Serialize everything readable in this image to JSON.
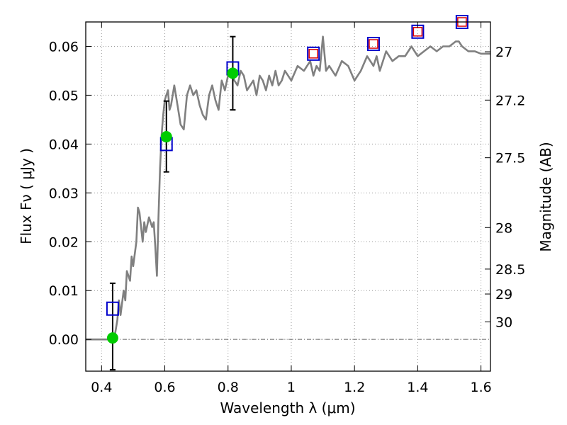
{
  "chart_data": {
    "type": "line",
    "xlabel": "Wavelength  λ (μm)",
    "ylabel_left": "Flux  Fν  ( μJy )",
    "ylabel_right": "Magnitude (AB)",
    "xlim": [
      0.35,
      1.63
    ],
    "ylim": [
      -0.0065,
      0.065
    ],
    "grid": true,
    "x_ticks": [
      0.4,
      0.6,
      0.8,
      1.0,
      1.2,
      1.4,
      1.6
    ],
    "x_tick_labels": [
      "0.4",
      "0.6",
      "0.8",
      "1",
      "1.2",
      "1.4",
      "1.6"
    ],
    "y_ticks": [
      0.0,
      0.01,
      0.02,
      0.03,
      0.04,
      0.05,
      0.06
    ],
    "y_tick_labels": [
      "0.00",
      "0.01",
      "0.02",
      "0.03",
      "0.04",
      "0.05",
      "0.06"
    ],
    "right_ticks": [
      {
        "label": "27",
        "flux": 0.0589
      },
      {
        "label": "27.2",
        "flux": 0.049
      },
      {
        "label": "27.5",
        "flux": 0.0372
      },
      {
        "label": "28",
        "flux": 0.0229
      },
      {
        "label": "28.5",
        "flux": 0.0144
      },
      {
        "label": "29",
        "flux": 0.0093
      },
      {
        "label": "30",
        "flux": 0.0036
      }
    ],
    "colors": {
      "model": "#808080",
      "model_flux_box": "#0000cc",
      "model_flux_box_inner": "#dd0000",
      "observed": "#00cc00",
      "errorbar": "#000000",
      "grid": "#9a9a9a"
    },
    "series": [
      {
        "kind": "model_spectrum",
        "x": [
          0.35,
          0.38,
          0.4,
          0.42,
          0.43,
          0.44,
          0.45,
          0.455,
          0.46,
          0.47,
          0.475,
          0.48,
          0.49,
          0.495,
          0.5,
          0.51,
          0.515,
          0.52,
          0.53,
          0.535,
          0.54,
          0.55,
          0.56,
          0.565,
          0.57,
          0.575,
          0.58,
          0.585,
          0.59,
          0.595,
          0.6,
          0.61,
          0.615,
          0.62,
          0.63,
          0.64,
          0.65,
          0.66,
          0.67,
          0.68,
          0.69,
          0.7,
          0.71,
          0.72,
          0.73,
          0.74,
          0.75,
          0.76,
          0.77,
          0.78,
          0.79,
          0.8,
          0.81,
          0.82,
          0.83,
          0.84,
          0.85,
          0.86,
          0.87,
          0.88,
          0.89,
          0.9,
          0.91,
          0.92,
          0.93,
          0.94,
          0.95,
          0.96,
          0.97,
          0.98,
          0.99,
          1.0,
          1.02,
          1.04,
          1.06,
          1.07,
          1.08,
          1.09,
          1.1,
          1.11,
          1.12,
          1.14,
          1.16,
          1.18,
          1.2,
          1.22,
          1.24,
          1.25,
          1.26,
          1.27,
          1.28,
          1.3,
          1.32,
          1.34,
          1.36,
          1.38,
          1.4,
          1.42,
          1.44,
          1.46,
          1.48,
          1.5,
          1.52,
          1.53,
          1.54,
          1.56,
          1.58,
          1.6,
          1.63
        ],
        "y": [
          0.0,
          0.0,
          0.0,
          0.0,
          0.0,
          0.0,
          0.004,
          0.008,
          0.005,
          0.01,
          0.008,
          0.014,
          0.012,
          0.017,
          0.015,
          0.02,
          0.027,
          0.026,
          0.02,
          0.024,
          0.022,
          0.025,
          0.023,
          0.024,
          0.019,
          0.013,
          0.025,
          0.035,
          0.042,
          0.046,
          0.049,
          0.051,
          0.047,
          0.048,
          0.052,
          0.048,
          0.044,
          0.043,
          0.05,
          0.052,
          0.05,
          0.051,
          0.048,
          0.046,
          0.045,
          0.05,
          0.052,
          0.049,
          0.047,
          0.053,
          0.051,
          0.054,
          0.055,
          0.053,
          0.052,
          0.055,
          0.054,
          0.051,
          0.052,
          0.053,
          0.05,
          0.054,
          0.053,
          0.051,
          0.054,
          0.052,
          0.055,
          0.052,
          0.053,
          0.055,
          0.054,
          0.053,
          0.056,
          0.055,
          0.057,
          0.054,
          0.056,
          0.055,
          0.062,
          0.055,
          0.056,
          0.054,
          0.057,
          0.056,
          0.053,
          0.055,
          0.058,
          0.057,
          0.056,
          0.058,
          0.055,
          0.059,
          0.057,
          0.058,
          0.058,
          0.06,
          0.058,
          0.059,
          0.06,
          0.059,
          0.06,
          0.06,
          0.061,
          0.061,
          0.06,
          0.059,
          0.059,
          0.0585,
          0.0585
        ]
      },
      {
        "kind": "model_band_flux",
        "x": [
          0.435,
          0.605,
          0.815,
          1.07,
          1.26,
          1.4,
          1.54
        ],
        "y": [
          0.0063,
          0.04,
          0.0555,
          0.0585,
          0.0605,
          0.063,
          0.065
        ],
        "inner_marker": [
          false,
          false,
          false,
          true,
          true,
          true,
          true
        ]
      },
      {
        "kind": "observed_flux",
        "x": [
          0.435,
          0.605,
          0.815
        ],
        "y": [
          0.0003,
          0.0415,
          0.0545
        ],
        "yerr_low": [
          0.0065,
          0.0072,
          0.0075
        ],
        "yerr_high": [
          0.0112,
          0.0073,
          0.0075
        ]
      }
    ]
  }
}
